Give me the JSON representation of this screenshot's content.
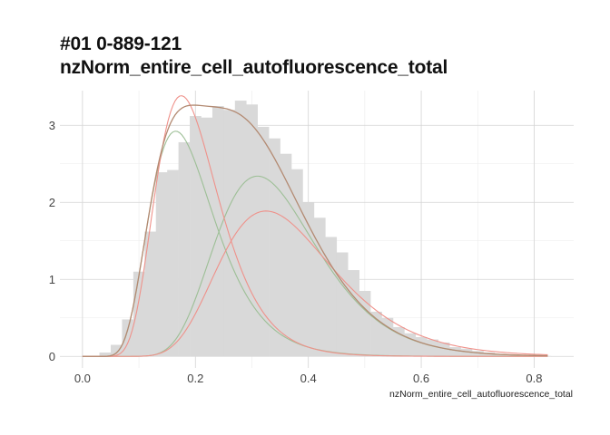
{
  "chart_data": {
    "type": "histogram",
    "title": [
      "#01 0-889-121",
      "nzNorm_entire_cell_autofluorescence_total"
    ],
    "xlabel": "nzNorm_entire_cell_autofluorescence_total",
    "ylabel": "",
    "xlim": [
      -0.04,
      0.87
    ],
    "ylim": [
      -0.15,
      3.45
    ],
    "x_ticks": [
      0.0,
      0.2,
      0.4,
      0.6,
      0.8
    ],
    "x_tick_labels": [
      "0.0",
      "0.2",
      "0.4",
      "0.6",
      "0.8"
    ],
    "y_ticks": [
      0,
      1,
      2,
      3
    ],
    "y_tick_labels": [
      "0",
      "1",
      "2",
      "3"
    ],
    "grid": true,
    "histogram": {
      "bin_width": 0.02,
      "bin_starts": [
        0.03,
        0.05,
        0.07,
        0.09,
        0.11,
        0.13,
        0.15,
        0.17,
        0.19,
        0.21,
        0.23,
        0.25,
        0.27,
        0.29,
        0.31,
        0.33,
        0.35,
        0.37,
        0.39,
        0.41,
        0.43,
        0.45,
        0.47,
        0.49,
        0.51,
        0.53,
        0.55,
        0.57,
        0.59,
        0.61,
        0.63,
        0.65,
        0.67,
        0.69,
        0.71,
        0.73,
        0.75,
        0.77,
        0.79,
        0.81
      ],
      "density": [
        0.05,
        0.15,
        0.48,
        1.1,
        1.62,
        2.39,
        2.42,
        2.78,
        3.12,
        3.1,
        3.25,
        3.2,
        3.32,
        3.27,
        2.98,
        2.83,
        2.63,
        2.43,
        2.0,
        1.8,
        1.55,
        1.35,
        1.12,
        0.85,
        0.58,
        0.5,
        0.38,
        0.3,
        0.25,
        0.22,
        0.18,
        0.12,
        0.1,
        0.07,
        0.05,
        0.03,
        0.02,
        0.01,
        0.01,
        0.005
      ],
      "color": "#d9d9d9"
    },
    "series": [
      {
        "kind": "lognormal",
        "weight": 0.45,
        "mode": 0.165,
        "sigma": 0.35,
        "color": "#9dbf96"
      },
      {
        "kind": "lognormal",
        "weight": 0.55,
        "mode": 0.31,
        "sigma": 0.29,
        "color": "#9dbf96"
      },
      {
        "kind": "lognormal",
        "weight": 0.5,
        "mode": 0.175,
        "sigma": 0.32,
        "color": "#ef918a"
      },
      {
        "kind": "lognormal",
        "weight": 0.5,
        "mode": 0.325,
        "sigma": 0.31,
        "color": "#ef918a"
      },
      {
        "kind": "total",
        "color": "#b38a72"
      }
    ]
  }
}
